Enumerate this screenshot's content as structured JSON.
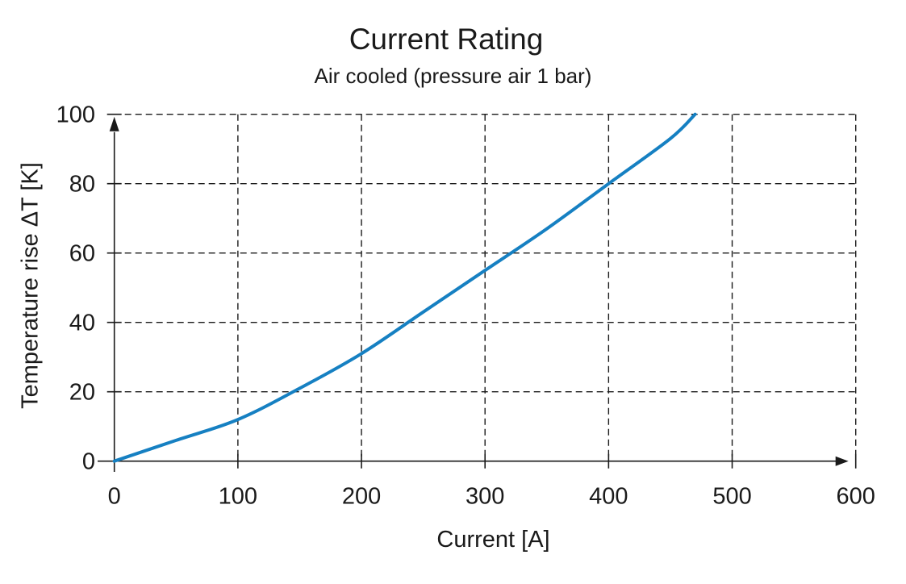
{
  "chart_data": {
    "type": "line",
    "title": "Current Rating",
    "subtitle": "Air cooled (pressure air 1 bar)",
    "xlabel": "Current [A]",
    "ylabel": "Temperature rise ΔT [K]",
    "xlim": [
      0,
      600
    ],
    "ylim": [
      0,
      100
    ],
    "xticks": [
      0,
      100,
      200,
      300,
      400,
      500,
      600
    ],
    "yticks": [
      0,
      20,
      40,
      60,
      80,
      100
    ],
    "grid": "dashed",
    "legend": "none",
    "axis_color": "#1a1a1a",
    "series": [
      {
        "name": "temperature-rise-vs-current",
        "color": "#1680c2",
        "points": [
          [
            0,
            0
          ],
          [
            50,
            6
          ],
          [
            100,
            12
          ],
          [
            150,
            21
          ],
          [
            200,
            31
          ],
          [
            250,
            43
          ],
          [
            300,
            55
          ],
          [
            350,
            67
          ],
          [
            400,
            80
          ],
          [
            450,
            93
          ],
          [
            470,
            100
          ]
        ]
      }
    ]
  }
}
